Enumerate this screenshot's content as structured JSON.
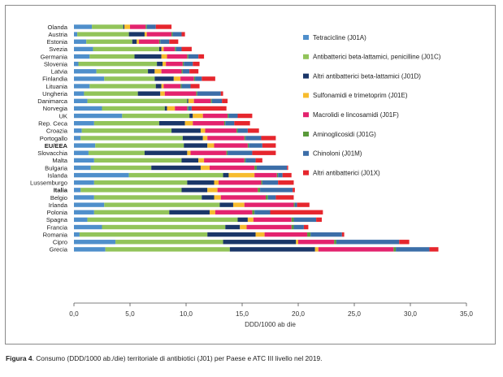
{
  "chart_data": {
    "type": "bar",
    "orientation": "horizontal",
    "stacked": true,
    "xlabel": "DDD/1000 ab die",
    "xlim": [
      0,
      35
    ],
    "xticks": [
      "0,0",
      "5,0",
      "10,0",
      "15,0",
      "20,0",
      "25,0",
      "30,0",
      "35,0"
    ],
    "grid": false,
    "legend_position": "right",
    "categories": [
      "Olanda",
      "Austria",
      "Estonia",
      "Svezia",
      "Germania",
      "Slovenia",
      "Latvia",
      "Finlandia",
      "Lituania",
      "Ungheria",
      "Danimarca",
      "Norvegia",
      "UK",
      "Rep. Ceca",
      "Croazia",
      "Portogallo",
      "EU/EEA",
      "Slovacchia",
      "Malta",
      "Bulgaria",
      "Islanda",
      "Lussemburgo",
      "Italia",
      "Belgio",
      "Irlanda",
      "Polonia",
      "Spagna",
      "Francia",
      "Romania",
      "Cipro",
      "Grecia"
    ],
    "bold_categories": [
      "EU/EEA",
      "Italia"
    ],
    "series": [
      {
        "name": "Tetracicline (J01A)",
        "color": "#4f8fcb",
        "values": [
          1.6,
          0.3,
          1.1,
          1.7,
          1.4,
          0.4,
          2.0,
          2.7,
          1.4,
          0.9,
          1.2,
          2.5,
          4.3,
          1.8,
          0.7,
          0.6,
          1.9,
          1.3,
          1.8,
          1.5,
          4.9,
          1.8,
          0.6,
          1.8,
          2.7,
          1.8,
          1.2,
          2.5,
          0.5,
          3.7,
          2.8
        ]
      },
      {
        "name": "Antibatterici beta-lattamici, penicilline (J01C)",
        "color": "#92c45a",
        "values": [
          2.8,
          4.6,
          4.1,
          5.9,
          4.0,
          7.0,
          4.6,
          4.5,
          5.9,
          4.8,
          8.9,
          5.6,
          6.0,
          5.8,
          8.0,
          9.1,
          7.9,
          5.0,
          7.8,
          5.4,
          8.4,
          8.3,
          9.0,
          9.6,
          10.3,
          6.7,
          13.4,
          11.0,
          11.4,
          9.6,
          11.1
        ]
      },
      {
        "name": "Altri antibatterici beta-lattamici (J01D)",
        "color": "#1a3668",
        "values": [
          0.1,
          1.4,
          0.4,
          0.2,
          2.4,
          0.5,
          0.6,
          1.7,
          0.5,
          2.0,
          0.1,
          0.2,
          0.3,
          2.3,
          2.6,
          1.8,
          2.1,
          3.8,
          1.5,
          4.4,
          0.5,
          2.4,
          2.3,
          1.1,
          1.2,
          3.6,
          0.9,
          1.3,
          4.3,
          6.5,
          7.6
        ]
      },
      {
        "name": "Sulfonamidi e trimetoprim (J01E)",
        "color": "#f7bc2e",
        "values": [
          0.5,
          0.2,
          0.2,
          0.2,
          0.5,
          0.3,
          0.6,
          0.6,
          0.2,
          0.4,
          0.5,
          0.7,
          0.9,
          0.7,
          0.4,
          0.4,
          0.6,
          0.3,
          0.5,
          0.8,
          2.3,
          0.4,
          0.9,
          0.6,
          1.0,
          0.5,
          0.5,
          0.6,
          0.8,
          0.2,
          0.3
        ]
      },
      {
        "name": "Macrolidi e lincosamidi (J01F)",
        "color": "#e3236e",
        "values": [
          1.4,
          2.2,
          1.8,
          1.0,
          1.8,
          1.5,
          1.8,
          1.2,
          1.5,
          2.8,
          1.5,
          1.1,
          2.2,
          2.8,
          2.8,
          3.3,
          3.0,
          3.2,
          3.6,
          4.0,
          2.0,
          3.8,
          3.6,
          4.0,
          4.4,
          3.3,
          3.4,
          4.0,
          3.8,
          3.2,
          6.7
        ]
      },
      {
        "name": "Aminoglicosidi (J01G)",
        "color": "#5a9a3a",
        "values": [
          0.1,
          0.1,
          0.1,
          0.1,
          0.1,
          0.1,
          0.1,
          0.1,
          0.1,
          0.1,
          0.1,
          0.1,
          0.1,
          0.1,
          0.1,
          0.1,
          0.1,
          0.1,
          0.1,
          0.2,
          0.1,
          0.1,
          0.2,
          0.2,
          0.1,
          0.2,
          0.2,
          0.2,
          0.3,
          0.2,
          0.2
        ]
      },
      {
        "name": "Chinoloni (J01M)",
        "color": "#3c6ea8",
        "values": [
          0.8,
          0.8,
          0.8,
          0.5,
          0.9,
          0.8,
          0.6,
          0.6,
          0.8,
          2.1,
          0.9,
          0.3,
          0.8,
          0.8,
          0.9,
          1.4,
          1.2,
          2.2,
          0.9,
          2.7,
          0.4,
          1.4,
          2.9,
          0.7,
          0.2,
          1.4,
          2.0,
          0.9,
          2.8,
          5.6,
          3.0
        ]
      },
      {
        "name": "Altri antibatterici (J01X)",
        "color": "#e6262d",
        "values": [
          1.4,
          0.3,
          0.8,
          0.9,
          0.5,
          0.6,
          0.8,
          1.2,
          0.8,
          0.2,
          0.5,
          3.1,
          1.3,
          1.4,
          1.0,
          1.3,
          1.2,
          2.1,
          0.6,
          0.1,
          0.8,
          1.4,
          0.2,
          1.6,
          1.1,
          4.7,
          0.5,
          0.4,
          0.2,
          0.9,
          0.8
        ]
      }
    ]
  },
  "caption": {
    "label": "Figura 4",
    "text": ". Consumo (DDD/1000 ab./die) territoriale di antibiotici (J01) per Paese e ATC III livello nel 2019."
  }
}
